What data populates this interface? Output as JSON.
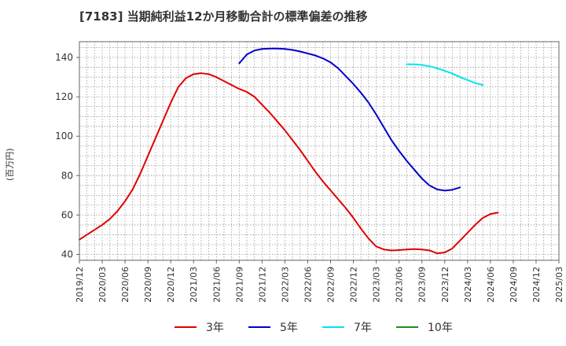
{
  "title": "[7183]  当期純利益12か月移動合計の標準偏差の推移",
  "y_unit": "(百万円)",
  "chart_data": {
    "type": "line",
    "title": "[7183]  当期純利益12か月移動合計の標準偏差の推移",
    "ylabel": "(百万円)",
    "xlabel": "",
    "ylim": [
      37,
      148
    ],
    "y_ticks": [
      40,
      60,
      80,
      100,
      120,
      140
    ],
    "x_ticks": [
      "2019/12",
      "2020/03",
      "2020/06",
      "2020/09",
      "2020/12",
      "2021/03",
      "2021/06",
      "2021/09",
      "2021/12",
      "2022/03",
      "2022/06",
      "2022/09",
      "2022/12",
      "2023/03",
      "2023/06",
      "2023/09",
      "2023/12",
      "2024/03",
      "2024/06",
      "2024/09",
      "2024/12",
      "2025/03"
    ],
    "grid": true,
    "legend_position": "bottom",
    "series": [
      {
        "name": "3年",
        "color": "#e00000",
        "points": [
          [
            "2019/12",
            47.5
          ],
          [
            "2020/01",
            50
          ],
          [
            "2020/02",
            52.5
          ],
          [
            "2020/03",
            55
          ],
          [
            "2020/04",
            58
          ],
          [
            "2020/05",
            62
          ],
          [
            "2020/06",
            67
          ],
          [
            "2020/07",
            73
          ],
          [
            "2020/08",
            81
          ],
          [
            "2020/09",
            90
          ],
          [
            "2020/10",
            99
          ],
          [
            "2020/11",
            108
          ],
          [
            "2020/12",
            117
          ],
          [
            "2021/01",
            125
          ],
          [
            "2021/02",
            129.5
          ],
          [
            "2021/03",
            131.5
          ],
          [
            "2021/04",
            132
          ],
          [
            "2021/05",
            131.5
          ],
          [
            "2021/06",
            130
          ],
          [
            "2021/07",
            128
          ],
          [
            "2021/08",
            126
          ],
          [
            "2021/09",
            124
          ],
          [
            "2021/10",
            122.5
          ],
          [
            "2021/11",
            120
          ],
          [
            "2021/12",
            116
          ],
          [
            "2022/01",
            112
          ],
          [
            "2022/02",
            107.5
          ],
          [
            "2022/03",
            103
          ],
          [
            "2022/04",
            98
          ],
          [
            "2022/05",
            93
          ],
          [
            "2022/06",
            87.5
          ],
          [
            "2022/07",
            82
          ],
          [
            "2022/08",
            77
          ],
          [
            "2022/09",
            72.5
          ],
          [
            "2022/10",
            68
          ],
          [
            "2022/11",
            63.5
          ],
          [
            "2022/12",
            58.5
          ],
          [
            "2023/01",
            53
          ],
          [
            "2023/02",
            48
          ],
          [
            "2023/03",
            44
          ],
          [
            "2023/04",
            42.5
          ],
          [
            "2023/05",
            42
          ],
          [
            "2023/06",
            42.2
          ],
          [
            "2023/07",
            42.5
          ],
          [
            "2023/08",
            42.7
          ],
          [
            "2023/09",
            42.5
          ],
          [
            "2023/10",
            42
          ],
          [
            "2023/11",
            40.5
          ],
          [
            "2023/12",
            41
          ],
          [
            "2024/01",
            43
          ],
          [
            "2024/02",
            47
          ],
          [
            "2024/03",
            51
          ],
          [
            "2024/04",
            55
          ],
          [
            "2024/05",
            58.5
          ],
          [
            "2024/06",
            60.5
          ],
          [
            "2024/07",
            61.2
          ]
        ]
      },
      {
        "name": "5年",
        "color": "#0000cc",
        "points": [
          [
            "2021/09",
            137
          ],
          [
            "2021/10",
            141.5
          ],
          [
            "2021/11",
            143.5
          ],
          [
            "2021/12",
            144.3
          ],
          [
            "2022/01",
            144.5
          ],
          [
            "2022/02",
            144.5
          ],
          [
            "2022/03",
            144.3
          ],
          [
            "2022/04",
            143.8
          ],
          [
            "2022/05",
            143
          ],
          [
            "2022/06",
            142
          ],
          [
            "2022/07",
            141
          ],
          [
            "2022/08",
            139.5
          ],
          [
            "2022/09",
            137.5
          ],
          [
            "2022/10",
            134.5
          ],
          [
            "2022/11",
            130.5
          ],
          [
            "2022/12",
            126.5
          ],
          [
            "2023/01",
            122
          ],
          [
            "2023/02",
            117
          ],
          [
            "2023/03",
            111
          ],
          [
            "2023/04",
            104.5
          ],
          [
            "2023/05",
            98
          ],
          [
            "2023/06",
            92.5
          ],
          [
            "2023/07",
            87.5
          ],
          [
            "2023/08",
            83
          ],
          [
            "2023/09",
            78.5
          ],
          [
            "2023/10",
            75
          ],
          [
            "2023/11",
            73
          ],
          [
            "2023/12",
            72.4
          ],
          [
            "2024/01",
            72.8
          ],
          [
            "2024/02",
            74
          ]
        ]
      },
      {
        "name": "7年",
        "color": "#00e5ee",
        "points": [
          [
            "2023/07",
            136.5
          ],
          [
            "2023/08",
            136.5
          ],
          [
            "2023/09",
            136.2
          ],
          [
            "2023/10",
            135.5
          ],
          [
            "2023/11",
            134.5
          ],
          [
            "2023/12",
            133.2
          ],
          [
            "2024/01",
            131.8
          ],
          [
            "2024/02",
            130
          ],
          [
            "2024/03",
            128.5
          ],
          [
            "2024/04",
            127
          ],
          [
            "2024/05",
            126
          ]
        ]
      },
      {
        "name": "10年",
        "color": "#228b22",
        "points": []
      }
    ]
  }
}
